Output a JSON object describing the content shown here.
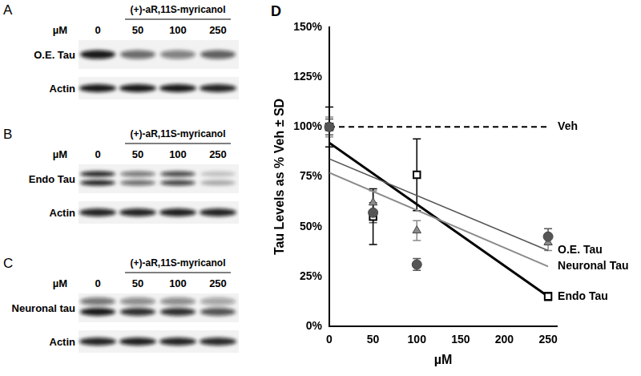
{
  "panels": [
    {
      "letter": "A",
      "compound": "(+)-aR,11S-myricanol",
      "unit": "µM",
      "concentrations": [
        0,
        50,
        100,
        250
      ],
      "band": "O.E. Tau",
      "loading_control": "Actin"
    },
    {
      "letter": "B",
      "compound": "(+)-aR,11S-myricanol",
      "unit": "µM",
      "concentrations": [
        0,
        50,
        100,
        250
      ],
      "band": "Endo Tau",
      "loading_control": "Actin"
    },
    {
      "letter": "C",
      "compound": "(+)-aR,11S-myricanol",
      "unit": "µM",
      "concentrations": [
        0,
        50,
        100,
        250
      ],
      "band": "Neuronal tau",
      "loading_control": "Actin"
    }
  ],
  "chart_data": {
    "panel": "D",
    "type": "scatter",
    "y_label": "Tau Levels as % Veh ± SD",
    "x_label": "µM",
    "x": [
      0,
      50,
      100,
      250
    ],
    "xlim": [
      0,
      260
    ],
    "xticks": [
      0,
      50,
      100,
      150,
      200,
      250
    ],
    "ylim": [
      0,
      150
    ],
    "yticks": [
      {
        "value": 0,
        "label": "0%"
      },
      {
        "value": 25,
        "label": "25%"
      },
      {
        "value": 50,
        "label": "50%"
      },
      {
        "value": 75,
        "label": "75%"
      },
      {
        "value": 100,
        "label": "100%"
      },
      {
        "value": 125,
        "label": "125%"
      },
      {
        "value": 150,
        "label": "150%"
      }
    ],
    "grid": false,
    "reference": {
      "label": "Veh",
      "value": 100,
      "line_style": "dashed"
    },
    "fit_x": [
      0,
      250
    ],
    "series": [
      {
        "name": "O.E. Tau",
        "color": "#555555",
        "marker": "circle",
        "values": [
          100,
          57,
          31,
          45
        ],
        "errors": [
          4,
          5,
          3,
          4
        ],
        "fit": [
          84,
          38
        ]
      },
      {
        "name": "Neuronal Tau",
        "color": "#8a8a8a",
        "marker": "triangle",
        "values": [
          100,
          62,
          48,
          42
        ],
        "errors": [
          5,
          6,
          5,
          4
        ],
        "fit": [
          77,
          30
        ]
      },
      {
        "name": "Endo Tau",
        "color": "#000000",
        "marker": "open_square",
        "values": [
          100,
          55,
          76,
          15
        ],
        "errors": [
          10,
          14,
          18,
          2
        ],
        "fit": [
          92,
          15
        ]
      }
    ]
  }
}
